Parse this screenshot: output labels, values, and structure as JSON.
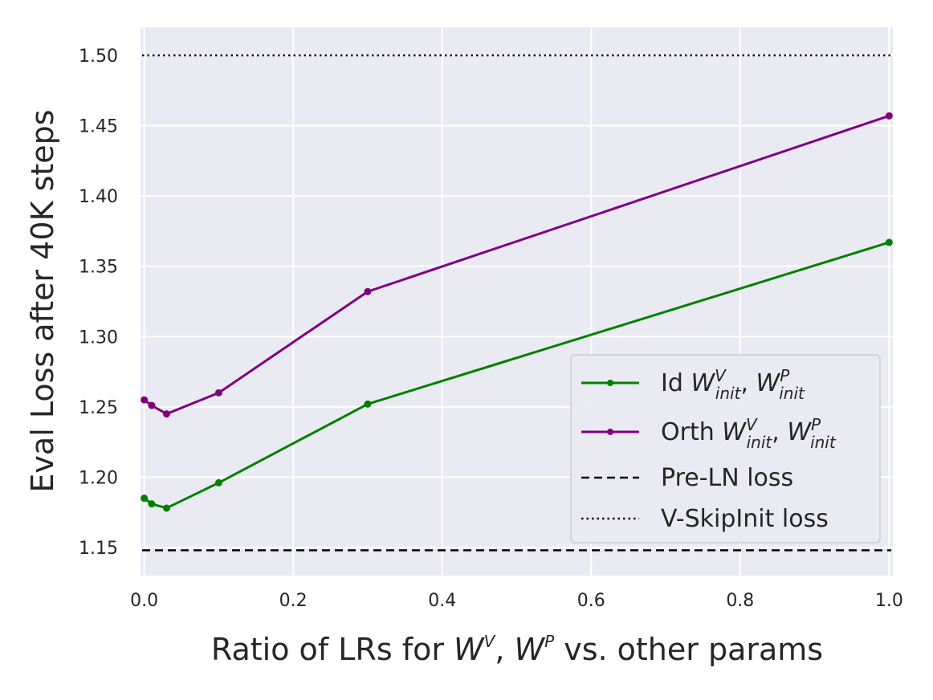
{
  "chart_data": {
    "type": "line",
    "xlabel": {
      "prefix": "Ratio of LRs for ",
      "v_letter": "W",
      "v_sup": "V",
      "sep": ", ",
      "p_letter": "W",
      "p_sup": "P",
      "suffix": " vs. other params"
    },
    "ylabel": "Eval Loss after 40K steps",
    "xlim": [
      -0.005,
      1.005
    ],
    "ylim": [
      1.13,
      1.52
    ],
    "xticks": [
      0.0,
      0.2,
      0.4,
      0.6,
      0.8,
      1.0
    ],
    "xtick_labels": [
      "0.0",
      "0.2",
      "0.4",
      "0.6",
      "0.8",
      "1.0"
    ],
    "yticks": [
      1.15,
      1.2,
      1.25,
      1.3,
      1.35,
      1.4,
      1.45,
      1.5
    ],
    "ytick_labels": [
      "1.15",
      "1.20",
      "1.25",
      "1.30",
      "1.35",
      "1.40",
      "1.45",
      "1.50"
    ],
    "grid": true,
    "legend_position": "lower-right",
    "series": [
      {
        "name": "Id",
        "legend": {
          "prefix": "Id ",
          "letter": "W",
          "sup1": "V",
          "sub1": "init",
          "sep": ", ",
          "letter2": "W",
          "sup2": "P",
          "sub2": "init"
        },
        "color": "#008000",
        "x": [
          0.0,
          0.01,
          0.03,
          0.1,
          0.3,
          1.0
        ],
        "y": [
          1.185,
          1.181,
          1.178,
          1.196,
          1.252,
          1.367
        ]
      },
      {
        "name": "Orth",
        "legend": {
          "prefix": "Orth ",
          "letter": "W",
          "sup1": "V",
          "sub1": "init",
          "sep": ", ",
          "letter2": "W",
          "sup2": "P",
          "sub2": "init"
        },
        "color": "#800080",
        "x": [
          0.0,
          0.01,
          0.03,
          0.1,
          0.3,
          1.0
        ],
        "y": [
          1.255,
          1.251,
          1.245,
          1.26,
          1.332,
          1.457
        ]
      }
    ],
    "reference_lines": [
      {
        "name": "Pre-LN loss",
        "y": 1.148,
        "style": "dashed",
        "color": "#000000"
      },
      {
        "name": "V-SkipInit loss",
        "y": 1.5,
        "style": "dotted",
        "color": "#000000"
      }
    ]
  }
}
